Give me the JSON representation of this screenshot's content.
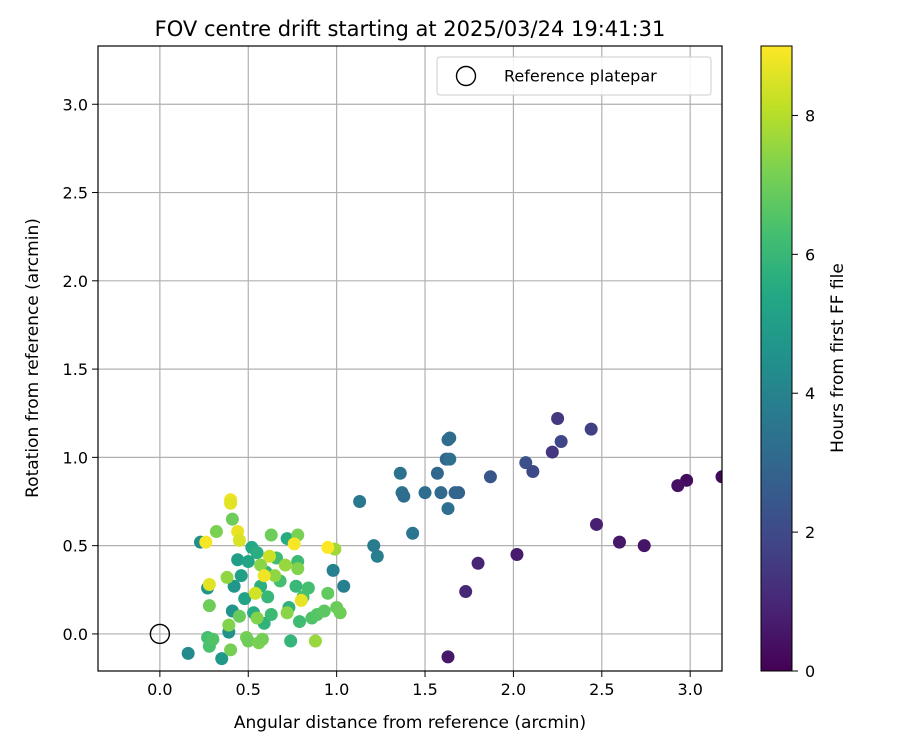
{
  "chart_data": {
    "type": "scatter",
    "title": "FOV centre drift starting at 2025/03/24 19:41:31",
    "xlabel": "Angular distance from reference (arcmin)",
    "ylabel": "Rotation from reference (arcmin)",
    "xlim": [
      -0.35,
      3.18
    ],
    "ylim": [
      -0.21,
      3.33
    ],
    "xticks": [
      0.0,
      0.5,
      1.0,
      1.5,
      2.0,
      2.5,
      3.0
    ],
    "yticks": [
      0.0,
      0.5,
      1.0,
      1.5,
      2.0,
      2.5,
      3.0
    ],
    "grid": true,
    "legend": {
      "placement": "top-right",
      "entries": [
        {
          "label": "Reference platepar",
          "marker": "open-circle"
        }
      ]
    },
    "colorbar": {
      "label": "Hours from first FF file",
      "min": 0,
      "max": 9,
      "ticks": [
        0,
        2,
        4,
        6,
        8
      ],
      "colormap": "viridis"
    },
    "reference_point": {
      "x": 0.0,
      "y": 0.0
    },
    "points": [
      {
        "x": 3.18,
        "y": 0.89,
        "hours": 0.2
      },
      {
        "x": 2.98,
        "y": 0.87,
        "hours": 0.3
      },
      {
        "x": 2.93,
        "y": 0.84,
        "hours": 0.4
      },
      {
        "x": 2.74,
        "y": 0.5,
        "hours": 0.5
      },
      {
        "x": 2.6,
        "y": 0.52,
        "hours": 0.6
      },
      {
        "x": 2.47,
        "y": 0.62,
        "hours": 0.8
      },
      {
        "x": 2.02,
        "y": 0.45,
        "hours": 0.7
      },
      {
        "x": 1.8,
        "y": 0.4,
        "hours": 0.9
      },
      {
        "x": 1.73,
        "y": 0.24,
        "hours": 1.0
      },
      {
        "x": 1.63,
        "y": -0.13,
        "hours": 0.6
      },
      {
        "x": 2.44,
        "y": 1.16,
        "hours": 1.7
      },
      {
        "x": 2.25,
        "y": 1.22,
        "hours": 1.5
      },
      {
        "x": 2.27,
        "y": 1.09,
        "hours": 1.9
      },
      {
        "x": 2.22,
        "y": 1.03,
        "hours": 1.4
      },
      {
        "x": 2.07,
        "y": 0.97,
        "hours": 2.2
      },
      {
        "x": 2.11,
        "y": 0.92,
        "hours": 2.0
      },
      {
        "x": 1.87,
        "y": 0.89,
        "hours": 2.4
      },
      {
        "x": 1.69,
        "y": 0.8,
        "hours": 2.8
      },
      {
        "x": 1.67,
        "y": 0.8,
        "hours": 2.9
      },
      {
        "x": 1.63,
        "y": 1.1,
        "hours": 3.1
      },
      {
        "x": 1.64,
        "y": 1.11,
        "hours": 3.2
      },
      {
        "x": 1.62,
        "y": 0.99,
        "hours": 3.0
      },
      {
        "x": 1.64,
        "y": 0.99,
        "hours": 3.3
      },
      {
        "x": 1.57,
        "y": 0.91,
        "hours": 3.0
      },
      {
        "x": 1.59,
        "y": 0.8,
        "hours": 3.1
      },
      {
        "x": 1.5,
        "y": 0.8,
        "hours": 3.2
      },
      {
        "x": 1.63,
        "y": 0.71,
        "hours": 3.3
      },
      {
        "x": 1.36,
        "y": 0.91,
        "hours": 3.4
      },
      {
        "x": 1.37,
        "y": 0.8,
        "hours": 3.3
      },
      {
        "x": 1.38,
        "y": 0.78,
        "hours": 3.2
      },
      {
        "x": 1.43,
        "y": 0.57,
        "hours": 3.5
      },
      {
        "x": 1.13,
        "y": 0.75,
        "hours": 3.6
      },
      {
        "x": 1.21,
        "y": 0.5,
        "hours": 3.7
      },
      {
        "x": 1.23,
        "y": 0.44,
        "hours": 3.8
      },
      {
        "x": 1.04,
        "y": 0.27,
        "hours": 3.9
      },
      {
        "x": 0.98,
        "y": 0.36,
        "hours": 3.9
      },
      {
        "x": 0.16,
        "y": -0.11,
        "hours": 4.3
      },
      {
        "x": 0.23,
        "y": 0.52,
        "hours": 4.4
      },
      {
        "x": 0.27,
        "y": 0.26,
        "hours": 4.6
      },
      {
        "x": 0.35,
        "y": -0.14,
        "hours": 4.8
      },
      {
        "x": 0.39,
        "y": 0.01,
        "hours": 4.5
      },
      {
        "x": 0.41,
        "y": 0.13,
        "hours": 4.6
      },
      {
        "x": 0.42,
        "y": 0.27,
        "hours": 4.7
      },
      {
        "x": 0.44,
        "y": 0.42,
        "hours": 5.0
      },
      {
        "x": 0.46,
        "y": 0.33,
        "hours": 5.1
      },
      {
        "x": 0.48,
        "y": 0.2,
        "hours": 5.2
      },
      {
        "x": 0.5,
        "y": 0.41,
        "hours": 5.3
      },
      {
        "x": 0.52,
        "y": 0.49,
        "hours": 5.4
      },
      {
        "x": 0.53,
        "y": 0.12,
        "hours": 5.5
      },
      {
        "x": 0.55,
        "y": 0.46,
        "hours": 5.6
      },
      {
        "x": 0.57,
        "y": 0.27,
        "hours": 5.7
      },
      {
        "x": 0.59,
        "y": 0.06,
        "hours": 5.8
      },
      {
        "x": 0.6,
        "y": 0.35,
        "hours": 5.9
      },
      {
        "x": 0.61,
        "y": 0.21,
        "hours": 6.0
      },
      {
        "x": 0.63,
        "y": 0.11,
        "hours": 6.1
      },
      {
        "x": 0.66,
        "y": 0.43,
        "hours": 6.2
      },
      {
        "x": 0.68,
        "y": 0.3,
        "hours": 6.3
      },
      {
        "x": 0.72,
        "y": 0.54,
        "hours": 5.5
      },
      {
        "x": 0.73,
        "y": 0.15,
        "hours": 5.8
      },
      {
        "x": 0.74,
        "y": -0.04,
        "hours": 5.9
      },
      {
        "x": 0.77,
        "y": 0.27,
        "hours": 6.0
      },
      {
        "x": 0.78,
        "y": 0.41,
        "hours": 6.1
      },
      {
        "x": 0.79,
        "y": 0.07,
        "hours": 6.2
      },
      {
        "x": 0.81,
        "y": 0.21,
        "hours": 6.4
      },
      {
        "x": 0.84,
        "y": 0.26,
        "hours": 6.3
      },
      {
        "x": 0.86,
        "y": 0.09,
        "hours": 6.5
      },
      {
        "x": 0.89,
        "y": 0.11,
        "hours": 6.6
      },
      {
        "x": 0.93,
        "y": 0.13,
        "hours": 6.7
      },
      {
        "x": 0.95,
        "y": 0.23,
        "hours": 6.8
      },
      {
        "x": 1.0,
        "y": 0.15,
        "hours": 6.9
      },
      {
        "x": 1.02,
        "y": 0.12,
        "hours": 7.0
      },
      {
        "x": 0.27,
        "y": -0.02,
        "hours": 6.3
      },
      {
        "x": 0.28,
        "y": -0.07,
        "hours": 6.4
      },
      {
        "x": 0.3,
        "y": -0.03,
        "hours": 6.5
      },
      {
        "x": 0.28,
        "y": 0.16,
        "hours": 7.0
      },
      {
        "x": 0.32,
        "y": 0.58,
        "hours": 7.2
      },
      {
        "x": 0.38,
        "y": 0.32,
        "hours": 7.5
      },
      {
        "x": 0.39,
        "y": 0.05,
        "hours": 7.3
      },
      {
        "x": 0.4,
        "y": -0.09,
        "hours": 7.1
      },
      {
        "x": 0.41,
        "y": 0.65,
        "hours": 7.0
      },
      {
        "x": 0.45,
        "y": 0.1,
        "hours": 6.9
      },
      {
        "x": 0.49,
        "y": -0.02,
        "hours": 7.1
      },
      {
        "x": 0.5,
        "y": -0.04,
        "hours": 7.0
      },
      {
        "x": 0.55,
        "y": 0.09,
        "hours": 7.3
      },
      {
        "x": 0.56,
        "y": -0.05,
        "hours": 7.2
      },
      {
        "x": 0.57,
        "y": 0.39,
        "hours": 7.4
      },
      {
        "x": 0.58,
        "y": -0.03,
        "hours": 7.1
      },
      {
        "x": 0.63,
        "y": 0.56,
        "hours": 7.0
      },
      {
        "x": 0.65,
        "y": 0.33,
        "hours": 7.5
      },
      {
        "x": 0.71,
        "y": 0.39,
        "hours": 7.6
      },
      {
        "x": 0.72,
        "y": 0.12,
        "hours": 7.4
      },
      {
        "x": 0.78,
        "y": 0.56,
        "hours": 7.2
      },
      {
        "x": 0.78,
        "y": 0.37,
        "hours": 7.3
      },
      {
        "x": 0.88,
        "y": -0.04,
        "hours": 7.6
      },
      {
        "x": 0.99,
        "y": 0.48,
        "hours": 7.7
      },
      {
        "x": 0.4,
        "y": 0.76,
        "hours": 8.8
      },
      {
        "x": 0.4,
        "y": 0.74,
        "hours": 8.6
      },
      {
        "x": 0.44,
        "y": 0.58,
        "hours": 8.7
      },
      {
        "x": 0.45,
        "y": 0.53,
        "hours": 8.5
      },
      {
        "x": 0.26,
        "y": 0.52,
        "hours": 8.9
      },
      {
        "x": 0.28,
        "y": 0.28,
        "hours": 8.6
      },
      {
        "x": 0.54,
        "y": 0.23,
        "hours": 8.4
      },
      {
        "x": 0.59,
        "y": 0.33,
        "hours": 8.8
      },
      {
        "x": 0.62,
        "y": 0.44,
        "hours": 8.3
      },
      {
        "x": 0.76,
        "y": 0.51,
        "hours": 8.9
      },
      {
        "x": 0.8,
        "y": 0.19,
        "hours": 8.7
      },
      {
        "x": 0.95,
        "y": 0.49,
        "hours": 9.0
      }
    ]
  }
}
